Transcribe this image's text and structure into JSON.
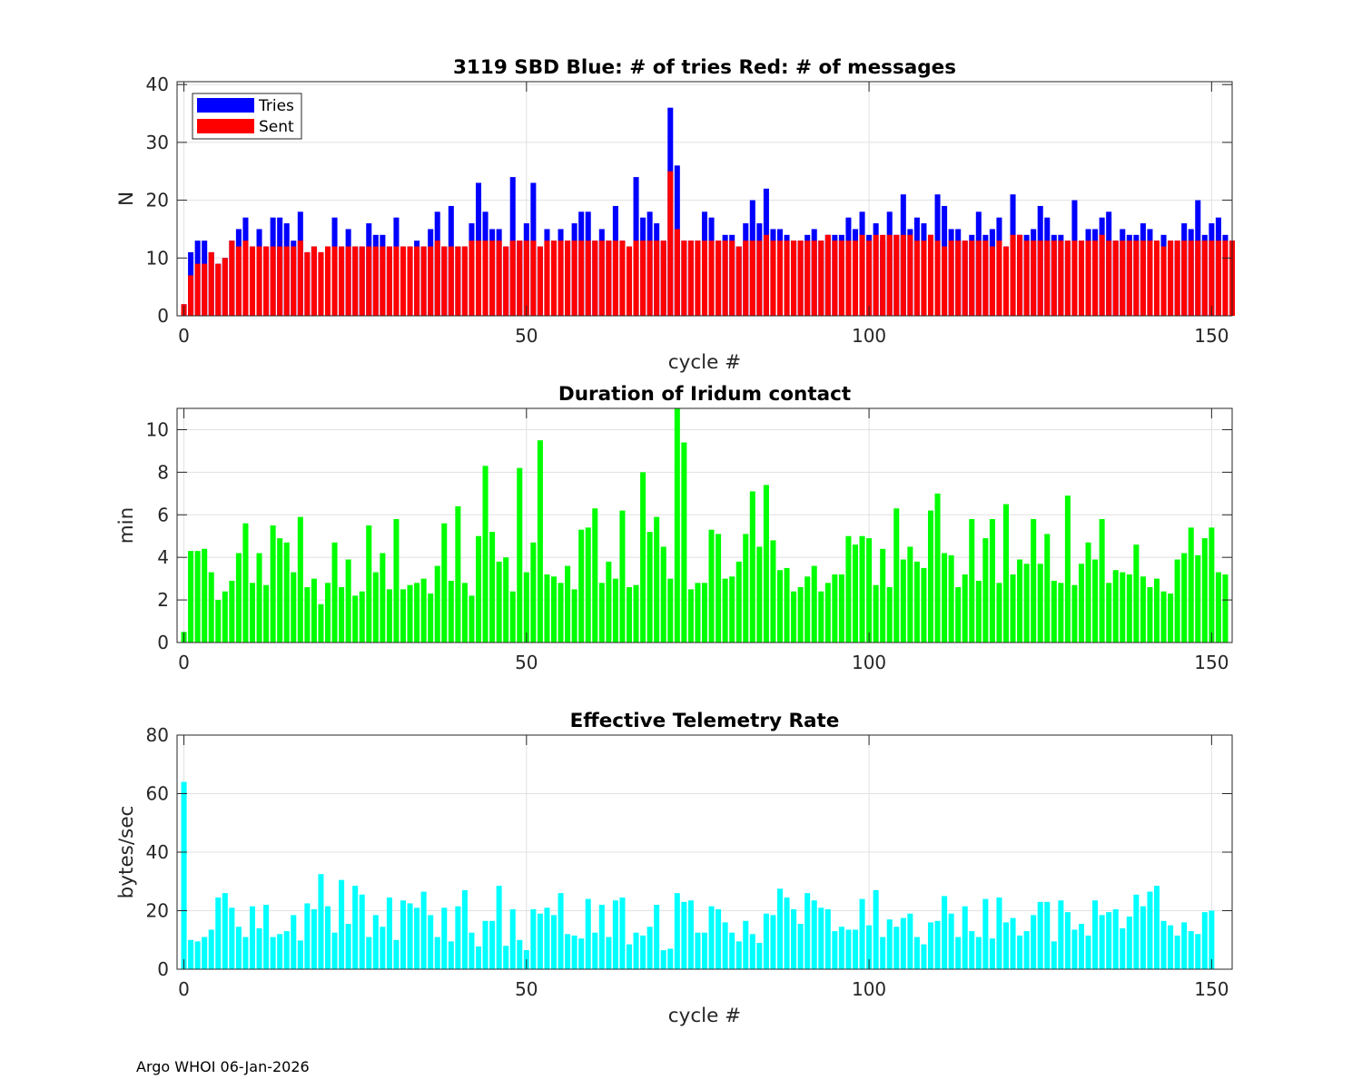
{
  "footer": "Argo WHOI 06-Jan-2026",
  "colors": {
    "tries": "#0000ff",
    "sent": "#ff0000",
    "duration": "#00ff00",
    "rate": "#00ffff",
    "grid": "#e1e1e1",
    "axis": "#262626"
  },
  "chart_data": [
    {
      "type": "bar",
      "stacked": "overlay",
      "title": "3119 SBD  Blue: # of tries   Red: # of messages",
      "xlabel": "cycle #",
      "ylabel": "N",
      "xlim": [
        -1,
        153
      ],
      "ylim": [
        0,
        40.5
      ],
      "xticks": [
        0,
        50,
        100,
        150
      ],
      "yticks": [
        0,
        10,
        20,
        30,
        40
      ],
      "grid": true,
      "legend": {
        "position": "top-left",
        "entries": [
          "Tries",
          "Sent"
        ]
      },
      "x_start": 0,
      "series": [
        {
          "name": "Tries",
          "color": "#0000ff",
          "values": [
            2,
            11,
            13,
            13,
            11,
            9,
            10,
            13,
            15,
            17,
            12,
            15,
            12,
            17,
            17,
            16,
            13,
            18,
            11,
            12,
            11,
            12,
            17,
            12,
            15,
            12,
            12,
            16,
            14,
            14,
            12,
            17,
            12,
            12,
            13,
            12,
            15,
            18,
            12,
            19,
            12,
            12,
            16,
            23,
            18,
            15,
            15,
            12,
            24,
            13,
            16,
            23,
            12,
            15,
            13,
            15,
            13,
            16,
            18,
            18,
            13,
            15,
            13,
            19,
            13,
            12,
            24,
            17,
            18,
            16,
            13,
            36,
            26,
            13,
            13,
            13,
            18,
            17,
            13,
            14,
            14,
            12,
            16,
            20,
            16,
            22,
            15,
            15,
            14,
            13,
            13,
            14,
            15,
            13,
            14,
            14,
            14,
            17,
            15,
            18,
            14,
            16,
            13,
            18,
            14,
            21,
            15,
            17,
            16,
            14,
            21,
            19,
            15,
            15,
            13,
            14,
            18,
            14,
            15,
            17,
            12,
            21,
            14,
            14,
            15,
            19,
            17,
            14,
            14,
            13,
            20,
            13,
            15,
            15,
            17,
            18,
            13,
            15,
            14,
            14,
            16,
            15,
            13,
            14,
            13,
            13,
            16,
            15,
            20,
            14,
            16,
            17,
            14,
            13
          ]
        },
        {
          "name": "Sent",
          "color": "#ff0000",
          "values": [
            2,
            7,
            9,
            9,
            11,
            9,
            10,
            13,
            12,
            13,
            12,
            12,
            12,
            12,
            12,
            12,
            12,
            13,
            11,
            12,
            11,
            12,
            12,
            12,
            12,
            12,
            12,
            12,
            12,
            12,
            12,
            12,
            12,
            12,
            12,
            12,
            12,
            13,
            12,
            12,
            12,
            12,
            13,
            13,
            13,
            13,
            13,
            12,
            13,
            13,
            13,
            13,
            12,
            13,
            13,
            13,
            13,
            13,
            13,
            13,
            13,
            13,
            13,
            13,
            13,
            12,
            13,
            13,
            13,
            13,
            13,
            25,
            15,
            13,
            13,
            13,
            13,
            13,
            13,
            13,
            13,
            12,
            13,
            13,
            13,
            14,
            13,
            13,
            13,
            13,
            13,
            13,
            13,
            13,
            14,
            13,
            13,
            13,
            13,
            14,
            13,
            14,
            14,
            14,
            14,
            14,
            14,
            13,
            13,
            14,
            13,
            12,
            13,
            13,
            13,
            13,
            13,
            13,
            12,
            13,
            12,
            14,
            14,
            13,
            13,
            13,
            13,
            13,
            13,
            13,
            13,
            13,
            13,
            13,
            14,
            13,
            13,
            13,
            13,
            13,
            13,
            13,
            13,
            12,
            13,
            13,
            13,
            13,
            13,
            13,
            13,
            13,
            13,
            13
          ]
        }
      ]
    },
    {
      "type": "bar",
      "title": "Duration of Iridum contact",
      "xlabel": "",
      "ylabel": "min",
      "xlim": [
        -1,
        153
      ],
      "ylim": [
        0,
        11
      ],
      "xticks": [
        0,
        50,
        100,
        150
      ],
      "yticks": [
        0,
        2,
        4,
        6,
        8,
        10
      ],
      "grid": true,
      "x_start": 0,
      "series": [
        {
          "name": "Duration",
          "color": "#00ff00",
          "values": [
            0.5,
            4.3,
            4.3,
            4.4,
            3.3,
            2.0,
            2.4,
            2.9,
            4.2,
            5.6,
            2.8,
            4.2,
            2.7,
            5.5,
            4.9,
            4.7,
            3.3,
            5.9,
            2.6,
            3.0,
            1.8,
            2.8,
            4.7,
            2.6,
            3.9,
            2.2,
            2.4,
            5.5,
            3.3,
            4.2,
            2.5,
            5.8,
            2.5,
            2.7,
            2.8,
            3.0,
            2.3,
            3.6,
            5.6,
            2.9,
            6.4,
            2.8,
            2.2,
            5.0,
            8.3,
            5.2,
            3.8,
            4.0,
            2.4,
            8.2,
            3.3,
            4.7,
            9.5,
            3.2,
            3.1,
            2.8,
            3.6,
            2.5,
            5.3,
            5.4,
            6.3,
            2.8,
            3.8,
            3.0,
            6.2,
            2.6,
            2.7,
            8.0,
            5.2,
            5.9,
            4.5,
            3.0,
            11.0,
            9.4,
            2.5,
            2.8,
            2.8,
            5.3,
            5.1,
            3.0,
            3.1,
            3.8,
            5.1,
            7.1,
            4.5,
            7.4,
            4.8,
            3.4,
            3.5,
            2.4,
            2.6,
            3.1,
            3.6,
            2.4,
            2.8,
            3.2,
            3.2,
            5.0,
            4.6,
            5.0,
            4.9,
            2.7,
            4.4,
            2.6,
            6.3,
            3.9,
            4.5,
            3.8,
            3.5,
            6.2,
            7.0,
            4.2,
            4.1,
            2.6,
            3.2,
            5.8,
            2.9,
            4.9,
            5.8,
            2.8,
            6.5,
            3.2,
            3.9,
            3.7,
            5.8,
            3.7,
            5.1,
            2.9,
            2.8,
            6.9,
            2.7,
            3.7,
            4.7,
            3.9,
            5.8,
            2.8,
            3.4,
            3.3,
            3.2,
            4.6,
            3.1,
            2.6,
            3.0,
            2.4,
            2.3,
            3.9,
            4.2,
            5.4,
            4.1,
            4.9,
            5.4,
            3.3,
            3.2
          ]
        }
      ]
    },
    {
      "type": "bar",
      "title": "Effective Telemetry Rate",
      "xlabel": "cycle #",
      "ylabel": "bytes/sec",
      "xlim": [
        -1,
        153
      ],
      "ylim": [
        0,
        80
      ],
      "xticks": [
        0,
        50,
        100,
        150
      ],
      "yticks": [
        0,
        20,
        40,
        60,
        80
      ],
      "grid": true,
      "x_start": 0,
      "series": [
        {
          "name": "Rate",
          "color": "#00ffff",
          "values": [
            64,
            10,
            9.5,
            11,
            13.5,
            24.5,
            26,
            21,
            14.5,
            11,
            21.5,
            14,
            22,
            11,
            12,
            13,
            18.5,
            9.8,
            22.5,
            20.5,
            32.5,
            21.5,
            12.5,
            30.5,
            15.5,
            28.5,
            25.5,
            11,
            18.5,
            14.5,
            24.5,
            10,
            23.5,
            22.5,
            21,
            26.5,
            18.5,
            11,
            21,
            9.5,
            21.5,
            27,
            12.5,
            7.8,
            16.5,
            16.5,
            28.5,
            8,
            20.5,
            10,
            6.5,
            20.5,
            19,
            21,
            18.5,
            26,
            12,
            11.5,
            10.5,
            24,
            12.5,
            22,
            11,
            23.5,
            24.5,
            8.5,
            12.5,
            11.5,
            14.5,
            22,
            6.5,
            7,
            26,
            23,
            23.5,
            12.5,
            12.5,
            21.5,
            20.5,
            16,
            12.5,
            9.5,
            16.5,
            12,
            9,
            19,
            18.5,
            27.5,
            24.5,
            20.5,
            15.5,
            26,
            23.5,
            21,
            20.5,
            13,
            14.5,
            13.5,
            13.5,
            24,
            15,
            27,
            11,
            17,
            14.5,
            17.5,
            19,
            11,
            8.5,
            16,
            16.5,
            25,
            19,
            11,
            21.5,
            13,
            11,
            24,
            10.5,
            24.5,
            16,
            17.5,
            11.5,
            13,
            18.5,
            23,
            23,
            9.5,
            23.5,
            19.5,
            13.5,
            15.5,
            11.5,
            23.5,
            18.5,
            19.5,
            20.5,
            14,
            18,
            25.5,
            21.5,
            26.5,
            28.5,
            16.5,
            15,
            11.5,
            16,
            13,
            12,
            19.5,
            20
          ]
        }
      ]
    }
  ]
}
